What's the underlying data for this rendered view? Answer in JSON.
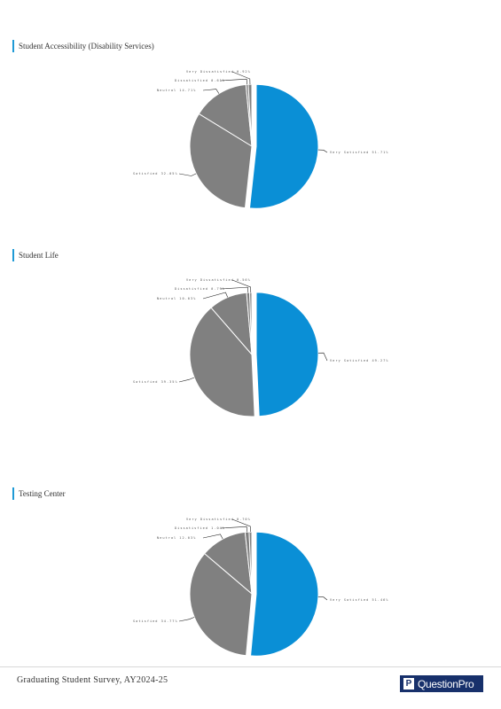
{
  "chart_data": [
    {
      "type": "pie",
      "title": "Student Accessibility (Disability Services)",
      "categories": [
        "Very Satisfied",
        "Satisfied",
        "Neutral",
        "Dissatisfied",
        "Very Dissatisfied"
      ],
      "values": [
        51.71,
        32.05,
        14.71,
        0.61,
        0.92
      ],
      "labels": [
        "Very Satisfied  51.71%",
        "Satisfied  32.05%",
        "Neutral  14.71%",
        "Dissatisfied  0.61%",
        "Very Dissatisfied  0.92%"
      ],
      "colors": [
        "#0a8fd6",
        "#808080",
        "#808080",
        "#808080",
        "#808080"
      ]
    },
    {
      "type": "pie",
      "title": "Student Life",
      "categories": [
        "Very Satisfied",
        "Satisfied",
        "Neutral",
        "Dissatisfied",
        "Very Dissatisfied"
      ],
      "values": [
        49.27,
        39.35,
        10.03,
        0.79,
        0.56
      ],
      "labels": [
        "Very Satisfied  49.27%",
        "Satisfied  39.35%",
        "Neutral  10.03%",
        "Dissatisfied  0.79%",
        "Very Dissatisfied  0.56%"
      ],
      "colors": [
        "#0a8fd6",
        "#808080",
        "#808080",
        "#808080",
        "#808080"
      ]
    },
    {
      "type": "pie",
      "title": "Testing Center",
      "categories": [
        "Very Satisfied",
        "Satisfied",
        "Neutral",
        "Dissatisfied",
        "Very Dissatisfied"
      ],
      "values": [
        51.46,
        34.77,
        12.03,
        1.04,
        0.7
      ],
      "labels": [
        "Very Satisfied  51.46%",
        "Satisfied  34.77%",
        "Neutral  12.03%",
        "Dissatisfied  1.04%",
        "Very Dissatisfied  0.70%"
      ],
      "colors": [
        "#0a8fd6",
        "#808080",
        "#808080",
        "#808080",
        "#808080"
      ]
    }
  ],
  "footer": {
    "text": "Graduating Student Survey, AY2024-25",
    "logo_mark": "P",
    "logo_text": "QuestionPro"
  }
}
